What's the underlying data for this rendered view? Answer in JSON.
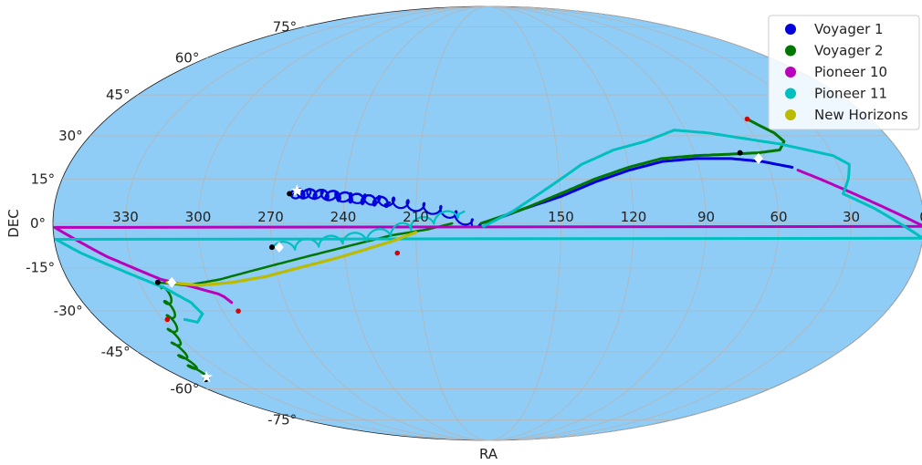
{
  "chart_data": {
    "type": "scatter",
    "projection": "mollweide",
    "xlabel": "RA",
    "ylabel": "DEC",
    "ra_ticks": [
      "150",
      "120",
      "90",
      "60",
      "30",
      "0",
      "330",
      "300",
      "270",
      "240",
      "210"
    ],
    "dec_ticks": [
      "75°",
      "60°",
      "45°",
      "30°",
      "15°",
      "0°",
      "-15°",
      "-30°",
      "-45°",
      "-60°",
      "-75°"
    ],
    "grid": true,
    "legend_position": "top-right",
    "background_color": "#8fccf6",
    "series": [
      {
        "name": "Voyager 1",
        "color": "#0000dd",
        "points": [
          [
            185,
            -1
          ],
          [
            192,
            2
          ],
          [
            198,
            4
          ],
          [
            205,
            5
          ],
          [
            212,
            6
          ],
          [
            218,
            7
          ],
          [
            224,
            7.5
          ],
          [
            230,
            8
          ],
          [
            236,
            8.5
          ],
          [
            242,
            9
          ],
          [
            248,
            9.5
          ],
          [
            254,
            10
          ],
          [
            258,
            10
          ],
          [
            261,
            10
          ]
        ],
        "loops": [
          [
            261,
            10
          ],
          [
            256,
            10
          ],
          [
            251,
            9.8
          ],
          [
            246,
            9.5
          ],
          [
            241,
            9
          ],
          [
            236,
            8.5
          ],
          [
            231,
            8
          ],
          [
            226,
            7.5
          ],
          [
            221,
            7
          ]
        ],
        "track": [
          [
            50,
            19
          ],
          [
            62,
            21
          ],
          [
            75,
            22
          ],
          [
            90,
            22
          ],
          [
            105,
            21
          ],
          [
            120,
            18
          ],
          [
            135,
            14
          ],
          [
            150,
            9
          ],
          [
            165,
            5
          ],
          [
            175,
            2
          ],
          [
            183,
            0
          ],
          [
            184,
            -1
          ]
        ],
        "start_marker": [
          263,
          10
        ],
        "current_marker": [
          260,
          11
        ]
      },
      {
        "name": "Voyager 2",
        "color": "#007700",
        "track": [
          [
            183,
            0
          ],
          [
            165,
            5
          ],
          [
            150,
            10
          ],
          [
            135,
            15
          ],
          [
            120,
            19
          ],
          [
            105,
            22
          ],
          [
            90,
            23
          ],
          [
            75,
            23.5
          ],
          [
            62,
            24
          ],
          [
            52,
            25
          ],
          [
            48,
            28
          ],
          [
            50,
            31
          ],
          [
            55,
            34
          ],
          [
            58,
            36
          ]
        ],
        "track2": [
          [
            0,
            0
          ],
          [
            -15,
            -6
          ],
          [
            -30,
            -12
          ],
          [
            -45,
            -16
          ],
          [
            -60,
            -19
          ]
        ],
        "track3": [
          [
            322,
            -20
          ],
          [
            310,
            -21
          ],
          [
            295,
            -19
          ],
          [
            280,
            -16
          ],
          [
            265,
            -13
          ],
          [
            250,
            -10
          ],
          [
            235,
            -7
          ],
          [
            220,
            -4
          ],
          [
            205,
            -2
          ],
          [
            195,
            0
          ]
        ],
        "spiral": [
          [
            320,
            -22
          ],
          [
            322,
            -27
          ],
          [
            325,
            -32
          ],
          [
            330,
            -37
          ],
          [
            335,
            -42
          ],
          [
            340,
            -47
          ],
          [
            343,
            -51
          ],
          [
            346,
            -55
          ]
        ],
        "start_marker": [
          348,
          -56
        ],
        "current_marker": [
          345,
          -55
        ],
        "end_marker": [
          328,
          -33
        ]
      },
      {
        "name": "Pioneer 10",
        "color": "#bb00bb",
        "track": [
          [
            48,
            18
          ],
          [
            40,
            15
          ],
          [
            30,
            11
          ],
          [
            20,
            7
          ],
          [
            10,
            3
          ],
          [
            0,
            -1
          ],
          [
            -10,
            -6
          ],
          [
            -20,
            -11
          ],
          [
            -30,
            -15
          ],
          [
            -40,
            -19
          ],
          [
            -50,
            -21
          ],
          [
            -58,
            -23
          ],
          [
            -62,
            -24
          ],
          [
            -64,
            -25
          ],
          [
            -66,
            -27
          ]
        ],
        "start_marker": [
          62,
          22
        ],
        "current_marker": [
          63,
          22
        ],
        "end_marker": [
          293,
          -30
        ]
      },
      {
        "name": "Pioneer 11",
        "color": "#00bfbf",
        "track": [
          [
            182,
            -1
          ],
          [
            170,
            4
          ],
          [
            155,
            12
          ],
          [
            140,
            20
          ],
          [
            125,
            25
          ],
          [
            110,
            28
          ],
          [
            95,
            32
          ],
          [
            80,
            31
          ],
          [
            65,
            29
          ],
          [
            50,
            27
          ],
          [
            40,
            25
          ],
          [
            30,
            23
          ],
          [
            25,
            20
          ],
          [
            28,
            15
          ],
          [
            32,
            10
          ],
          [
            20,
            5
          ],
          [
            10,
            0
          ],
          [
            0,
            -5
          ],
          [
            -10,
            -10
          ],
          [
            -20,
            -14
          ],
          [
            -30,
            -18
          ],
          [
            -40,
            -22
          ],
          [
            -48,
            -27
          ],
          [
            -50,
            -31
          ],
          [
            -45,
            -34
          ],
          [
            -40,
            -33
          ]
        ],
        "track2": [
          [
            268,
            -8
          ],
          [
            258,
            -7
          ],
          [
            248,
            -6
          ],
          [
            238,
            -5
          ],
          [
            228,
            -4
          ],
          [
            218,
            -2
          ],
          [
            210,
            0
          ],
          [
            200,
            2
          ],
          [
            190,
            4
          ]
        ],
        "start_marker": [
          270,
          -8
        ],
        "current_marker": [
          267,
          -8
        ]
      },
      {
        "name": "New Horizons",
        "color": "#bbbb00",
        "track": [
          [
            318,
            -20
          ],
          [
            305,
            -21
          ],
          [
            290,
            -20
          ],
          [
            275,
            -18
          ],
          [
            260,
            -15
          ],
          [
            245,
            -12
          ],
          [
            232,
            -9
          ],
          [
            220,
            -6
          ],
          [
            210,
            -3
          ]
        ],
        "start_marker": [
          322,
          -20
        ],
        "current_marker": [
          316,
          -20
        ],
        "end_marker": [
          218,
          -10
        ]
      }
    ]
  }
}
